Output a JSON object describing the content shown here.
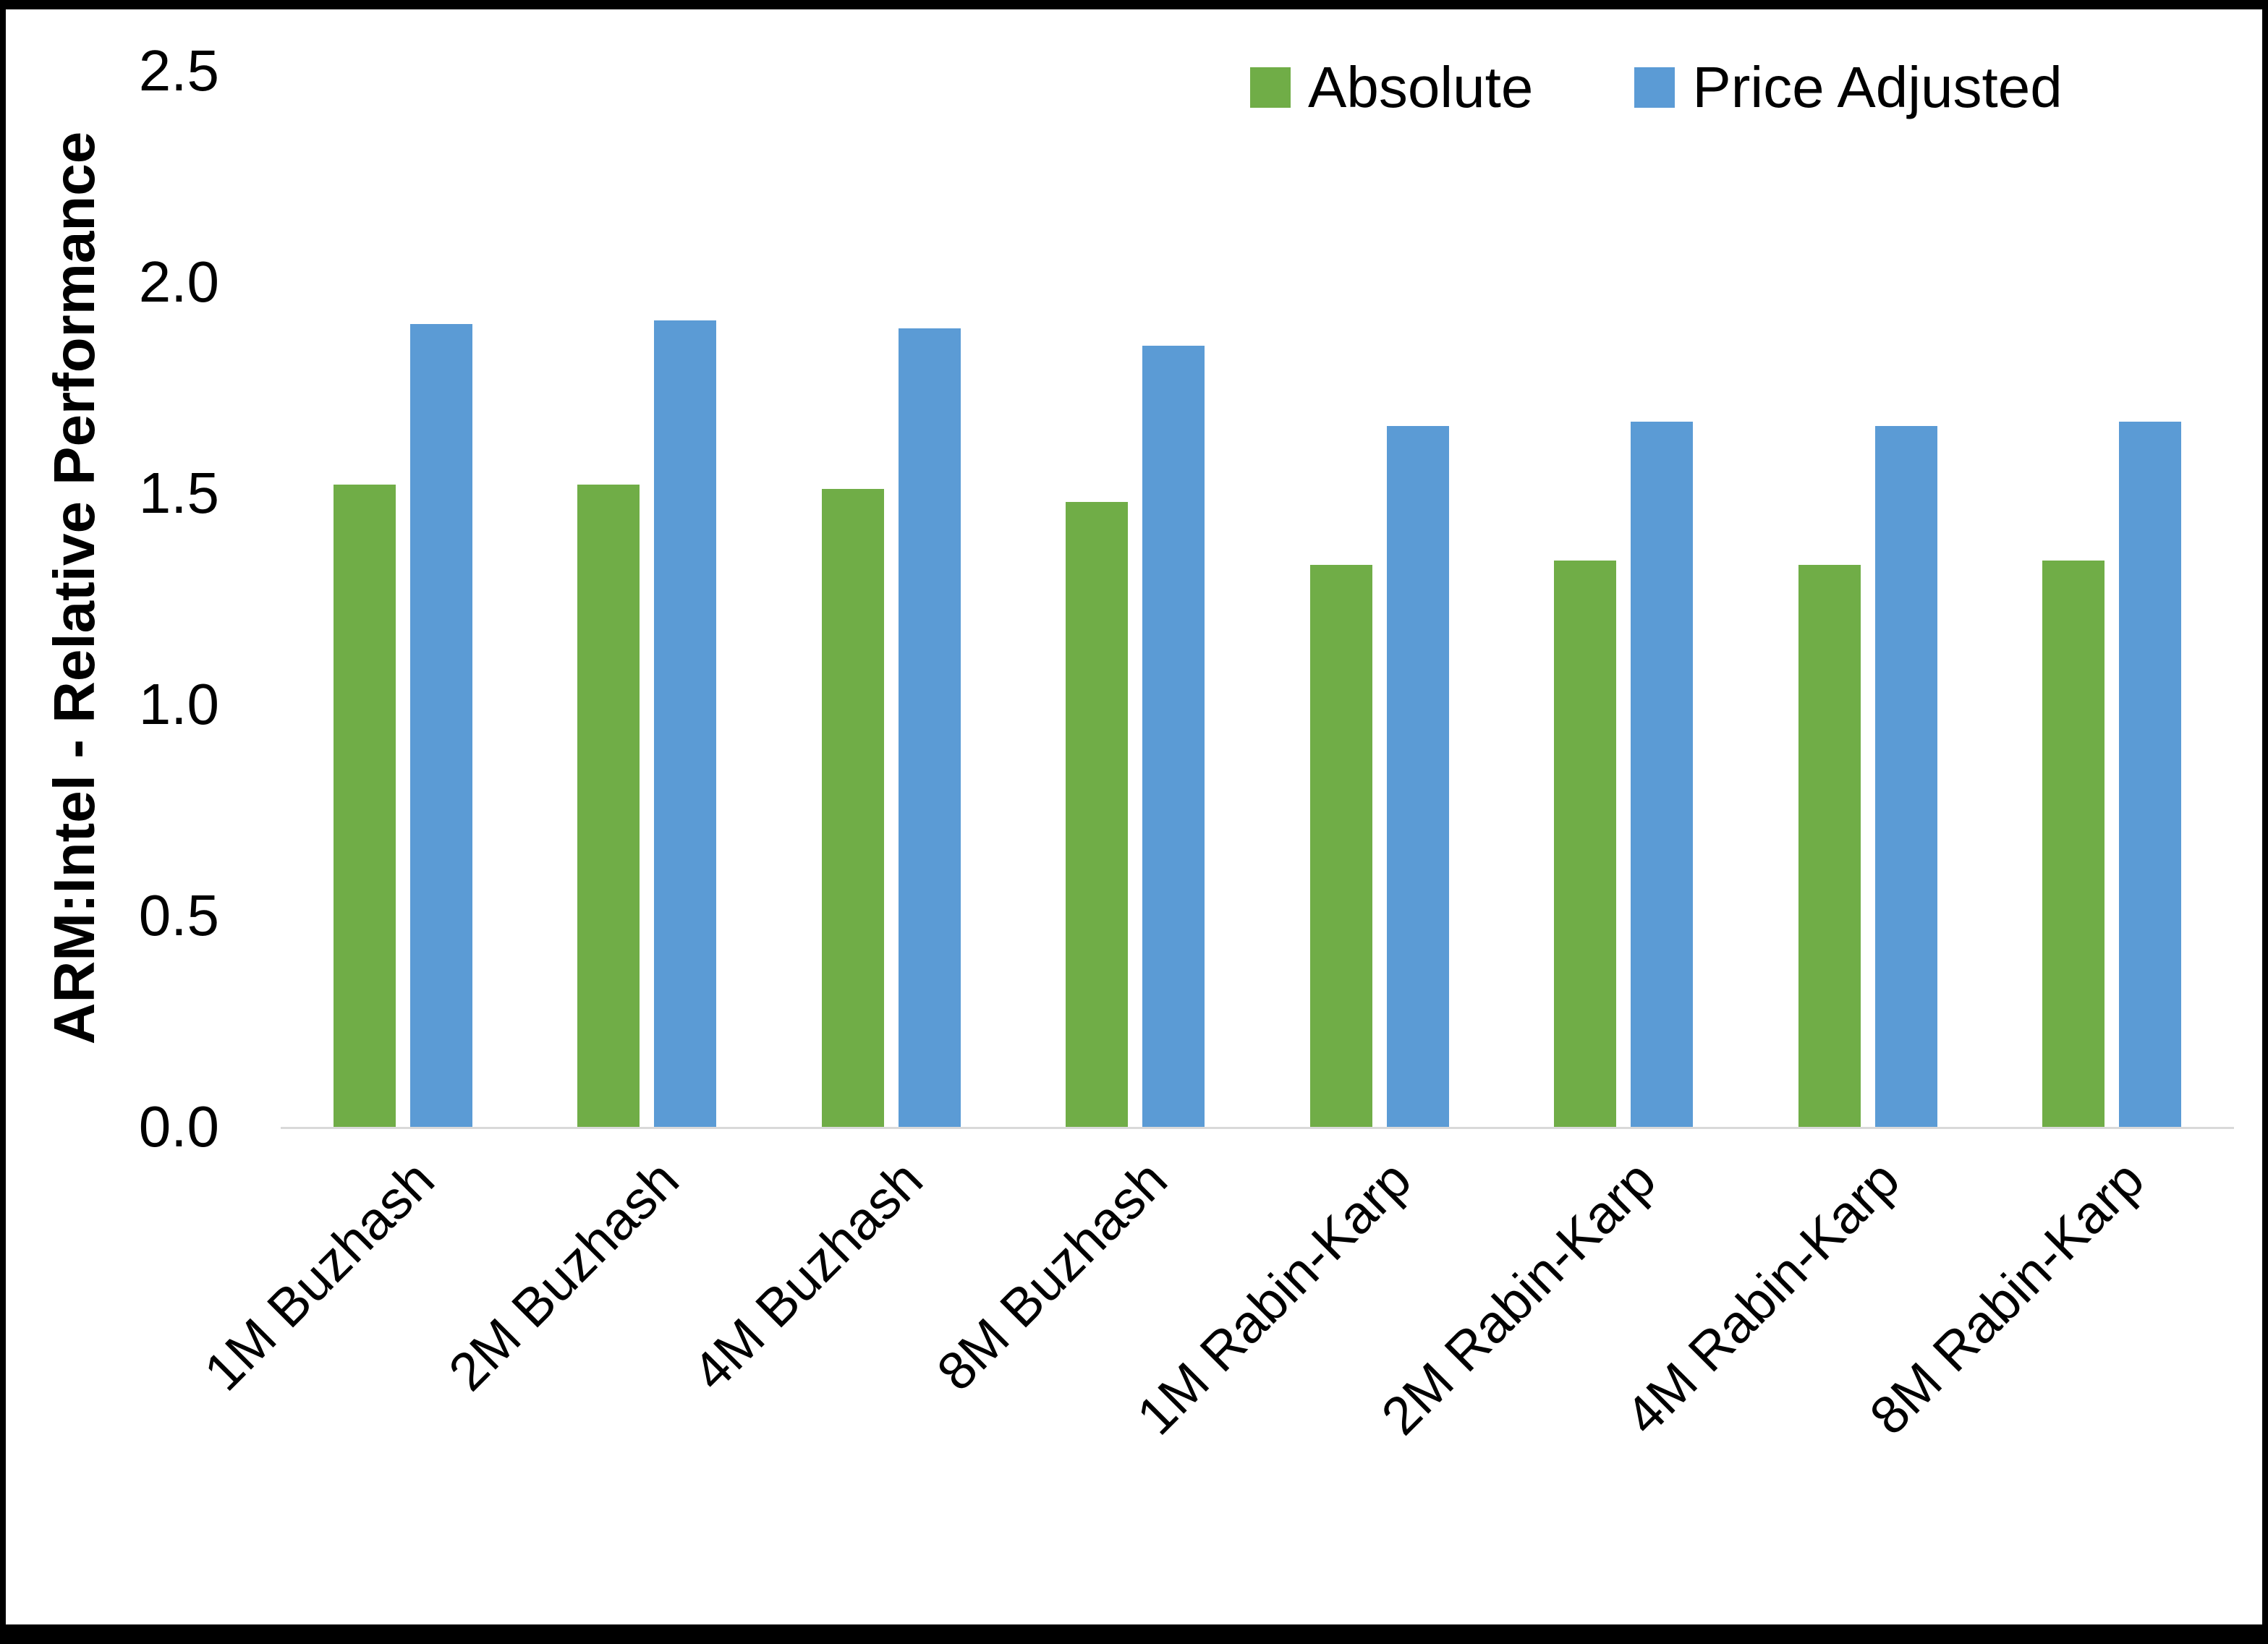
{
  "chart_data": {
    "type": "bar",
    "categories": [
      "1M Buzhash",
      "2M Buzhash",
      "4M Buzhash",
      "8M Buzhash",
      "1M Rabin-Karp",
      "2M Rabin-Karp",
      "4M Rabin-Karp",
      "8M Rabin-Karp"
    ],
    "series": [
      {
        "name": "Absolute",
        "color": "#70AD47",
        "values": [
          1.52,
          1.52,
          1.51,
          1.48,
          1.33,
          1.34,
          1.33,
          1.34
        ]
      },
      {
        "name": "Price Adjusted",
        "color": "#5B9BD5",
        "values": [
          1.9,
          1.91,
          1.89,
          1.85,
          1.66,
          1.67,
          1.66,
          1.67
        ]
      }
    ],
    "title": "",
    "xlabel": "",
    "ylabel": "ARM:Intel - Relative Performance",
    "ylim": [
      0,
      2.5
    ],
    "ytick_labels": [
      "0.0",
      "0.5",
      "1.0",
      "1.5",
      "2.0",
      "2.5"
    ],
    "grid": false,
    "legend_position": "top-right",
    "axis_line_color": "#D9D9D9"
  }
}
